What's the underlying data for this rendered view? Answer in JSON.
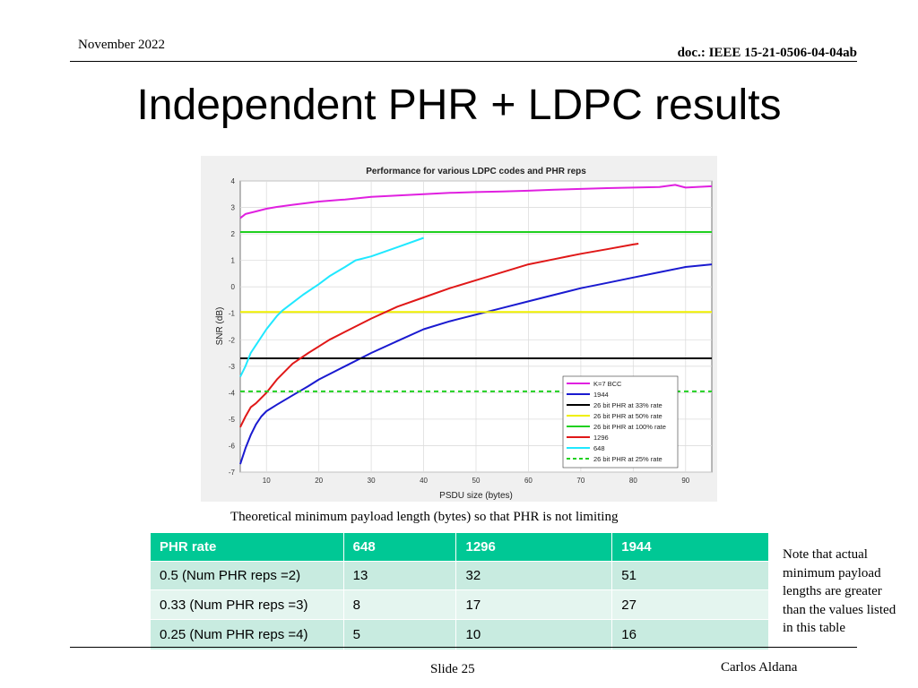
{
  "header": {
    "date": "November 2022",
    "doc": "doc.: IEEE 15-21-0506-04-04ab"
  },
  "slide_title": "Independent PHR + LDPC results",
  "chart_data": {
    "type": "line",
    "title": "Performance for various LDPC codes and PHR reps",
    "xlabel": "PSDU size (bytes)",
    "ylabel": "SNR (dB)",
    "xlim": [
      5,
      95
    ],
    "ylim": [
      -7,
      4
    ],
    "x_ticks": [
      10,
      20,
      30,
      40,
      50,
      60,
      70,
      80,
      90
    ],
    "y_ticks": [
      -7,
      -6,
      -5,
      -4,
      -3,
      -2,
      -1,
      0,
      1,
      2,
      3,
      4
    ],
    "grid": true,
    "legend_position": "bottom-right",
    "series": [
      {
        "name": "K=7 BCC",
        "color": "#e020e0",
        "style": "solid",
        "x": [
          5,
          6,
          8,
          10,
          12,
          15,
          20,
          25,
          30,
          35,
          40,
          45,
          50,
          55,
          60,
          65,
          70,
          75,
          80,
          85,
          88,
          90,
          95
        ],
        "y": [
          2.6,
          2.75,
          2.85,
          2.95,
          3.02,
          3.1,
          3.22,
          3.3,
          3.4,
          3.45,
          3.5,
          3.55,
          3.58,
          3.6,
          3.63,
          3.67,
          3.7,
          3.73,
          3.75,
          3.77,
          3.85,
          3.75,
          3.8
        ]
      },
      {
        "name": "1944",
        "color": "#1a1ad0",
        "style": "solid",
        "x": [
          5,
          6,
          7,
          8,
          9,
          10,
          12,
          15,
          18,
          20,
          25,
          30,
          35,
          40,
          45,
          50,
          55,
          60,
          65,
          70,
          75,
          80,
          85,
          90,
          95
        ],
        "y": [
          -6.7,
          -6.1,
          -5.6,
          -5.2,
          -4.9,
          -4.7,
          -4.45,
          -4.1,
          -3.75,
          -3.5,
          -3.0,
          -2.5,
          -2.05,
          -1.6,
          -1.3,
          -1.05,
          -0.8,
          -0.55,
          -0.3,
          -0.05,
          0.15,
          0.35,
          0.55,
          0.75,
          0.85
        ]
      },
      {
        "name": "26 bit PHR at 33% rate",
        "color": "#000000",
        "style": "solid",
        "x": [
          5,
          95
        ],
        "y": [
          -2.7,
          -2.7
        ]
      },
      {
        "name": "26 bit PHR at 50% rate",
        "color": "#f0f000",
        "style": "solid",
        "x": [
          5,
          95
        ],
        "y": [
          -0.95,
          -0.95
        ]
      },
      {
        "name": "26 bit PHR at 100% rate",
        "color": "#20d020",
        "style": "solid",
        "x": [
          5,
          95
        ],
        "y": [
          2.07,
          2.07
        ]
      },
      {
        "name": "1296",
        "color": "#e01818",
        "style": "solid",
        "x": [
          5,
          6,
          7,
          8,
          10,
          12,
          15,
          18,
          20,
          22,
          25,
          30,
          35,
          40,
          45,
          50,
          55,
          60,
          65,
          70,
          75,
          80,
          81
        ],
        "y": [
          -5.3,
          -4.9,
          -4.55,
          -4.4,
          -4.0,
          -3.5,
          -2.9,
          -2.5,
          -2.25,
          -2.0,
          -1.7,
          -1.2,
          -0.75,
          -0.4,
          -0.05,
          0.25,
          0.55,
          0.85,
          1.05,
          1.25,
          1.42,
          1.6,
          1.63
        ]
      },
      {
        "name": "648",
        "color": "#20e8ff",
        "style": "solid",
        "x": [
          5,
          6,
          7,
          8,
          10,
          12,
          13,
          15,
          17,
          20,
          22,
          25,
          27,
          30,
          35,
          40
        ],
        "y": [
          -3.4,
          -3.0,
          -2.5,
          -2.2,
          -1.6,
          -1.1,
          -0.9,
          -0.6,
          -0.3,
          0.1,
          0.4,
          0.75,
          1.0,
          1.15,
          1.5,
          1.85
        ]
      },
      {
        "name": "26 bit PHR at 25% rate",
        "color": "#20d020",
        "style": "dashed",
        "x": [
          5,
          95
        ],
        "y": [
          -3.95,
          -3.95
        ]
      }
    ]
  },
  "table": {
    "caption": "Theoretical minimum payload length (bytes) so that PHR is not limiting",
    "headers": [
      "PHR rate",
      "648",
      "1296",
      "1944"
    ],
    "rows": [
      [
        "0.5 (Num PHR reps =2)",
        "13",
        "32",
        "51"
      ],
      [
        "0.33 (Num PHR reps =3)",
        "8",
        "17",
        "27"
      ],
      [
        "0.25 (Num PHR reps =4)",
        "5",
        "10",
        "16"
      ]
    ]
  },
  "note": "Note that actual minimum payload lengths are greater than the values listed in this table",
  "footer": {
    "slide": "Slide 25",
    "author": "Carlos Aldana"
  }
}
